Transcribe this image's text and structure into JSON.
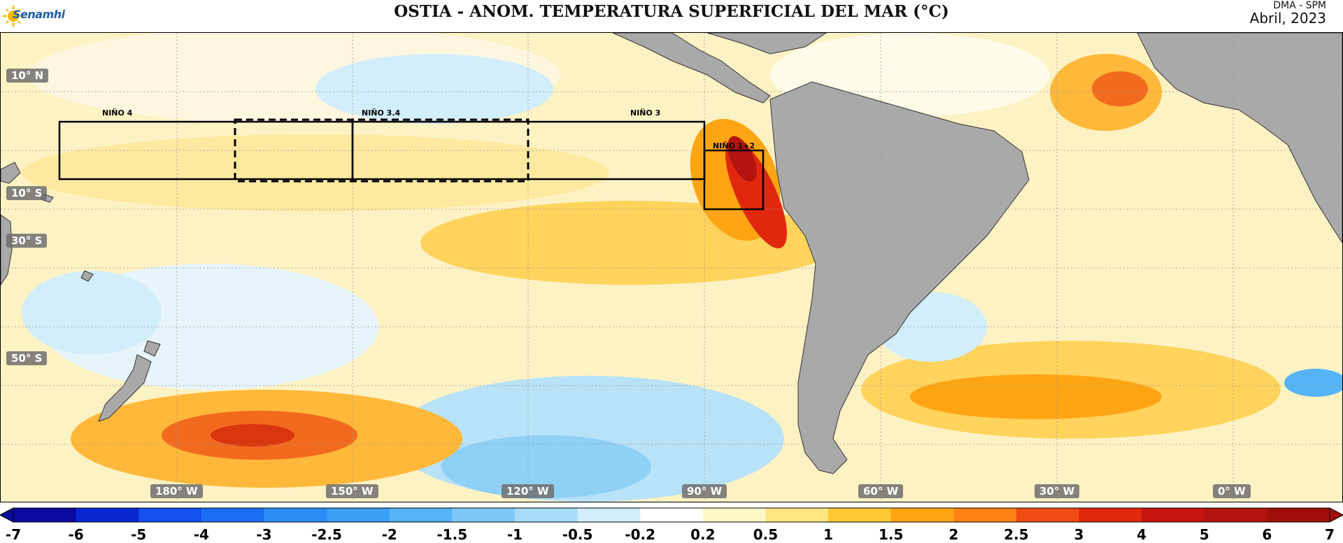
{
  "header": {
    "brand": "Senamhi",
    "title": "OSTIA - ANOM. TEMPERATURA SUPERFICIAL DEL MAR (°C)",
    "organization": "DMA - SPM",
    "date": "Abril, 2023"
  },
  "map": {
    "lat_labels": [
      "10° N",
      "10° S",
      "30° S",
      "50° S"
    ],
    "lon_labels": [
      "180° W",
      "150° W",
      "120° W",
      "90° W",
      "60° W",
      "30° W",
      "0° W"
    ],
    "boxes": [
      {
        "name": "NIÑO 4",
        "style": "solid"
      },
      {
        "name": "NIÑO 3.4",
        "style": "dashed"
      },
      {
        "name": "NIÑO 3",
        "style": "solid"
      },
      {
        "name": "NIÑO 1+2",
        "style": "solid"
      }
    ],
    "land_color": "#a9a9a9",
    "ocean_base_color": "#fdf2c4"
  },
  "colorbar": {
    "ticks": [
      "-7",
      "-6",
      "-5",
      "-4",
      "-3",
      "-2.5",
      "-2",
      "-1.5",
      "-1",
      "-0.5",
      "-0.2",
      "0.2",
      "0.5",
      "1",
      "1.5",
      "2",
      "2.5",
      "3",
      "4",
      "5",
      "6",
      "7"
    ],
    "colors": [
      "#0a0aa0",
      "#0a28d2",
      "#1450f0",
      "#1e6ef5",
      "#2a8cf5",
      "#3aa0f5",
      "#55b4f5",
      "#7ec8f5",
      "#a6dcf8",
      "#d2eefb",
      "#ffffff",
      "#fff6c8",
      "#ffe682",
      "#ffc832",
      "#ffa514",
      "#ff8214",
      "#f04b14",
      "#e1280f",
      "#c8140f",
      "#b4140f",
      "#a00f0a"
    ]
  }
}
